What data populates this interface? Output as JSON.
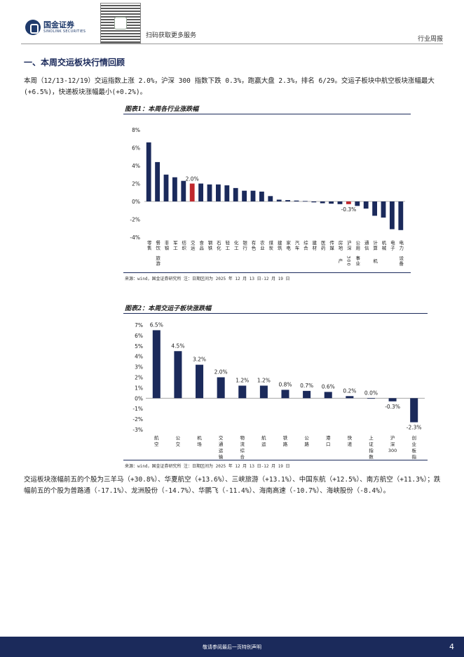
{
  "header": {
    "brand_cn": "国金证券",
    "brand_en": "SINOLINK SECURITIES",
    "qr_caption": "扫码获取更多服务",
    "doc_type": "行业周报"
  },
  "section": {
    "title": "一、本周交运板块行情回顾",
    "intro": "本周（12/13-12/19）交运指数上涨 2.0%，沪深 300 指数下跌 0.3%，跑赢大盘 2.3%，排名 6/29。交运子板块中航空板块涨幅最大(+6.5%)，快递板块涨幅最小(+0.2%)。"
  },
  "figure1": {
    "title": "图表1：本周各行业涨跌幅",
    "source": "来源：wind，国金证券研究所    注：日期区间为 2025 年 12 月 13 日-12 月 19 日"
  },
  "figure2": {
    "title": "图表2：本周交运子板块涨跌幅",
    "source": "来源：wind，国金证券研究所    注：日期区间为 2025 年 12 月 13 日-12 月 19 日"
  },
  "body2": "交运板块涨幅前五的个股为三羊马（+30.8%）、华夏航空（+13.6%）、三峡旅游（+13.1%）、中国东航（+12.5%）、南方航空（+11.3%）；跌幅前五的个股为普路通（-17.1%）、龙洲股份（-14.7%）、华鹏飞（-11.4%）、海南高速（-10.7%）、海峡股份（-8.4%）。",
  "footer": {
    "text": "敬请参阅最后一页特别声明",
    "page": "4"
  },
  "colors": {
    "navy": "#1b2a5b",
    "red": "#c0282d"
  },
  "chart_data": [
    {
      "type": "bar",
      "title": "图表1：本周各行业涨跌幅",
      "categories": [
        "零售",
        "餐饮旅游",
        "非银",
        "军工",
        "纺织",
        "交运",
        "食品",
        "钢铁",
        "石化",
        "轻工",
        "化工",
        "银行",
        "有色",
        "农业",
        "煤炭",
        "建筑",
        "家电",
        "汽车",
        "综合",
        "建材",
        "医药",
        "传媒",
        "房地产",
        "沪深300",
        "公用事业",
        "通信",
        "计算机",
        "机械",
        "电子",
        "电力设备"
      ],
      "labels": [
        "零售",
        "餐饮\n旅游",
        "非银",
        "军工",
        "纺织",
        "交运",
        "食品",
        "钢铁",
        "石化",
        "轻工",
        "化工",
        "银行",
        "有色",
        "农业",
        "煤炭",
        "建筑",
        "家电",
        "汽车",
        "综合",
        "建材",
        "医药",
        "传媒",
        "房地\n产",
        "沪深\n300",
        "公用\n事业",
        "通信",
        "计算\n机",
        "机械",
        "电子",
        "电力\n设备"
      ],
      "values": [
        6.6,
        4.4,
        3.0,
        2.7,
        2.3,
        2.0,
        2.0,
        1.9,
        1.9,
        1.8,
        1.5,
        1.2,
        1.2,
        1.1,
        0.6,
        0.2,
        0.15,
        0.1,
        0.05,
        -0.1,
        -0.2,
        -0.25,
        -0.3,
        -0.3,
        -0.5,
        -0.8,
        -1.6,
        -1.8,
        -3.1,
        -3.2
      ],
      "highlight": {
        "交运": "2.0%",
        "沪深300": "-0.3%"
      },
      "yticks": [
        "8%",
        "6%",
        "4%",
        "2%",
        "0%",
        "-2%",
        "-4%"
      ],
      "ylim": [
        -4,
        8
      ]
    },
    {
      "type": "bar",
      "title": "图表2：本周交运子板块涨跌幅",
      "categories": [
        "航空",
        "公交",
        "机场",
        "交通运输",
        "物流综合",
        "航运",
        "铁路",
        "公路",
        "港口",
        "快递",
        "上证指数",
        "沪深300",
        "创业板指"
      ],
      "labels": [
        "航\n空",
        "公\n交",
        "机\n场",
        "交\n通\n运\n输",
        "物\n流\n综\n合",
        "航\n运",
        "铁\n路",
        "公\n路",
        "港\n口",
        "快\n递",
        "上\n证\n指\n数",
        "沪\n深\n300",
        "创\n业\n板\n指"
      ],
      "values": [
        6.5,
        4.5,
        3.2,
        2.0,
        1.2,
        1.2,
        0.8,
        0.7,
        0.6,
        0.2,
        0.0,
        -0.3,
        -2.3
      ],
      "value_labels": [
        "6.5%",
        "4.5%",
        "3.2%",
        "2.0%",
        "1.2%",
        "1.2%",
        "0.8%",
        "0.7%",
        "0.6%",
        "0.2%",
        "0.0%",
        "-0.3%",
        "-2.3%"
      ],
      "yticks": [
        "7%",
        "6%",
        "5%",
        "4%",
        "3%",
        "2%",
        "1%",
        "0%",
        "-1%",
        "-2%",
        "-3%"
      ],
      "ylim": [
        -3,
        7
      ]
    }
  ]
}
